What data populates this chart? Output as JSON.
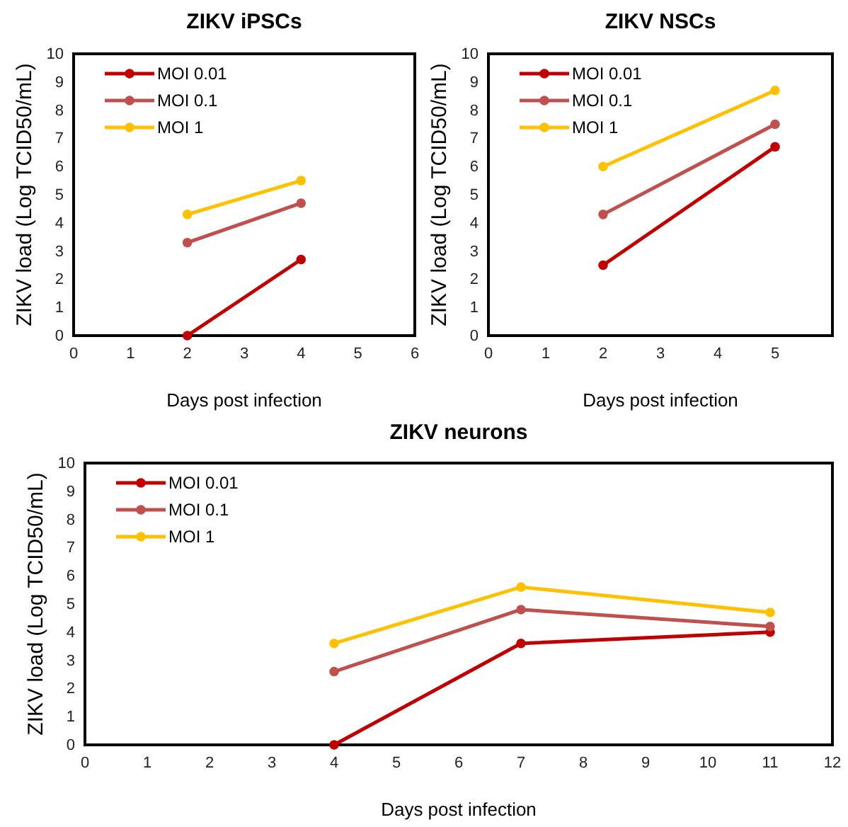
{
  "chart_data": [
    {
      "type": "line",
      "title": "ZIKV iPSCs",
      "xlabel": "Days post infection",
      "ylabel": "ZIKV load (Log TCID50/mL)",
      "xlim": [
        0,
        6
      ],
      "xticks": [
        0,
        1,
        2,
        3,
        4,
        5,
        6
      ],
      "ylim": [
        0,
        10
      ],
      "yticks": [
        0,
        1,
        2,
        3,
        4,
        5,
        6,
        7,
        8,
        9,
        10
      ],
      "x": [
        2,
        4
      ],
      "legend": "top left",
      "marker": "circle",
      "line_style": "solid",
      "series": [
        {
          "name": "MOI 0.01",
          "color": "#c00000",
          "values": [
            0,
            2.7
          ]
        },
        {
          "name": "MOI 0.1",
          "color": "#c0504d",
          "values": [
            3.3,
            4.7
          ]
        },
        {
          "name": "MOI 1",
          "color": "#ffc000",
          "values": [
            4.3,
            5.5
          ]
        }
      ]
    },
    {
      "type": "line",
      "title": "ZIKV NSCs",
      "xlabel": "Days post infection",
      "ylabel": "ZIKV load (Log TCID50/mL)",
      "xlim": [
        0,
        6
      ],
      "xticks": [
        0,
        1,
        2,
        3,
        4,
        5
      ],
      "ylim": [
        0,
        10
      ],
      "yticks": [
        0,
        1,
        2,
        3,
        4,
        5,
        6,
        7,
        8,
        9,
        10
      ],
      "x": [
        2,
        5
      ],
      "legend": "top left",
      "marker": "circle",
      "line_style": "solid",
      "series": [
        {
          "name": "MOI 0.01",
          "color": "#c00000",
          "values": [
            2.5,
            6.7
          ]
        },
        {
          "name": "MOI 0.1",
          "color": "#c0504d",
          "values": [
            4.3,
            7.5
          ]
        },
        {
          "name": "MOI 1",
          "color": "#ffc000",
          "values": [
            6,
            8.7
          ]
        }
      ]
    },
    {
      "type": "line",
      "title": "ZIKV neurons",
      "xlabel": "Days post infection",
      "ylabel": "ZIKV load (Log TCID50/mL)",
      "xlim": [
        0,
        12
      ],
      "xticks": [
        0,
        1,
        2,
        3,
        4,
        5,
        6,
        7,
        8,
        9,
        10,
        11,
        12
      ],
      "ylim": [
        0,
        10
      ],
      "yticks": [
        0,
        1,
        2,
        3,
        4,
        5,
        6,
        7,
        8,
        9,
        10
      ],
      "x": [
        4,
        7,
        11
      ],
      "legend": "top left",
      "marker": "circle",
      "line_style": "solid",
      "series": [
        {
          "name": "MOI 0.01",
          "color": "#c00000",
          "values": [
            0,
            3.6,
            4
          ]
        },
        {
          "name": "MOI 0.1",
          "color": "#c0504d",
          "values": [
            2.6,
            4.8,
            4.2
          ]
        },
        {
          "name": "MOI 1",
          "color": "#ffc000",
          "values": [
            3.6,
            5.6,
            4.7
          ]
        }
      ]
    }
  ]
}
